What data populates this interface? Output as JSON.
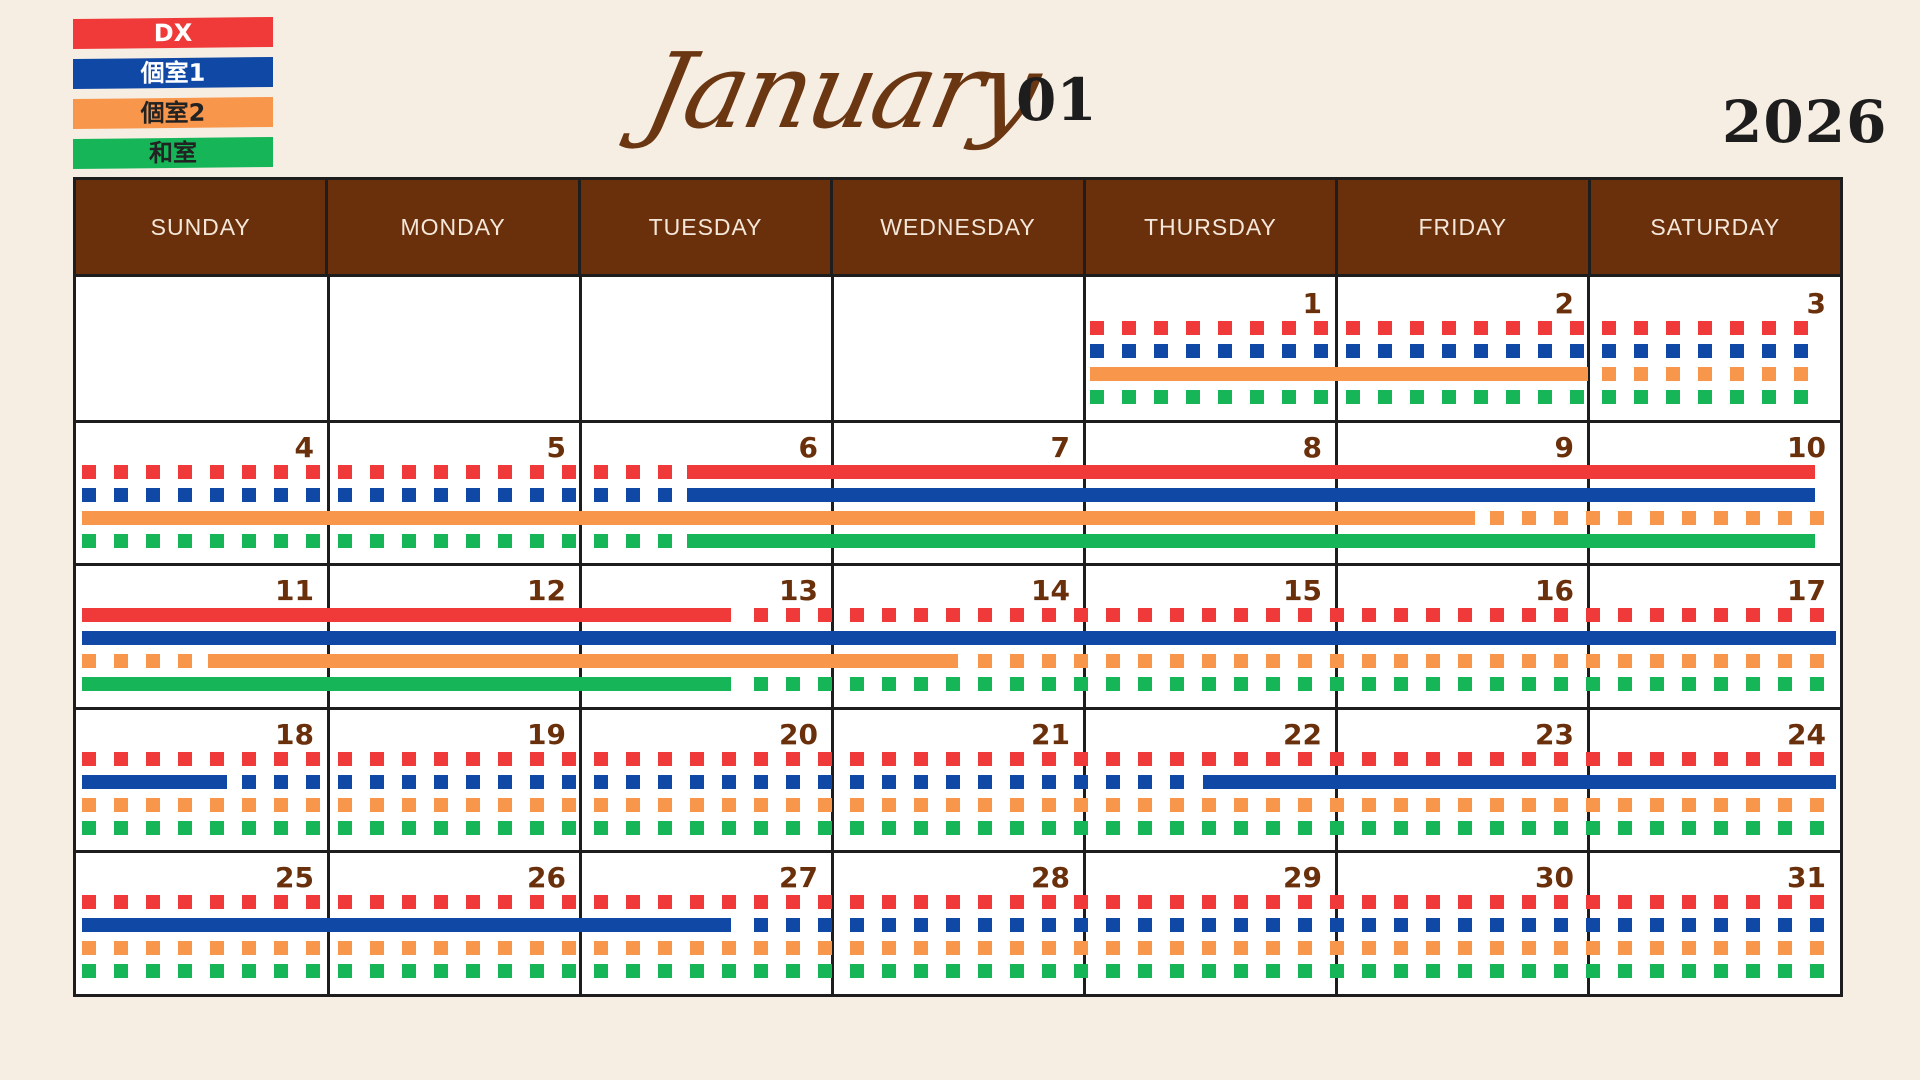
{
  "legend": [
    {
      "label": "DX",
      "color": "#f03a3a",
      "dark": false
    },
    {
      "label": "個室1",
      "color": "#1048a6",
      "dark": false
    },
    {
      "label": "個室2",
      "color": "#f8964c",
      "dark": true
    },
    {
      "label": "和室",
      "color": "#16b658",
      "dark": true
    }
  ],
  "header": {
    "month_name": "January",
    "month_number": "01",
    "year": "2026"
  },
  "weekdays": [
    "SUNDAY",
    "MONDAY",
    "TUESDAY",
    "WEDNESDAY",
    "THURSDAY",
    "FRIDAY",
    "SATURDAY"
  ],
  "colors": {
    "header_bg": "#6a300b",
    "date_text": "#6a300b",
    "page_bg": "#f6eee3"
  },
  "weeks": [
    {
      "days": [
        "",
        "",
        "",
        "",
        "1",
        "2",
        "3"
      ],
      "bookings": {
        "dx": [],
        "r1": [],
        "r2": [
          [
            4,
            6
          ]
        ],
        "wa": []
      }
    },
    {
      "days": [
        "4",
        "5",
        "6",
        "7",
        "8",
        "9",
        "10"
      ],
      "bookings": {
        "dx": [
          [
            2.4,
            6.9
          ]
        ],
        "r1": [
          [
            2.4,
            6.9
          ]
        ],
        "r2": [
          [
            0,
            5.55
          ]
        ],
        "wa": [
          [
            2.4,
            6.9
          ]
        ]
      }
    },
    {
      "days": [
        "11",
        "12",
        "13",
        "14",
        "15",
        "16",
        "17"
      ],
      "bookings": {
        "dx": [
          [
            0,
            2.6
          ]
        ],
        "r1": [
          [
            0,
            7
          ]
        ],
        "r2": [
          [
            0.5,
            3.5
          ]
        ],
        "wa": [
          [
            0,
            2.6
          ]
        ]
      }
    },
    {
      "days": [
        "18",
        "19",
        "20",
        "21",
        "22",
        "23",
        "24"
      ],
      "bookings": {
        "dx": [],
        "r1": [
          [
            0,
            0.6
          ],
          [
            4.45,
            7
          ]
        ],
        "r2": [],
        "wa": []
      }
    },
    {
      "days": [
        "25",
        "26",
        "27",
        "28",
        "29",
        "30",
        "31"
      ],
      "bookings": {
        "dx": [],
        "r1": [
          [
            0,
            2.6
          ]
        ],
        "r2": [],
        "wa": []
      }
    }
  ]
}
